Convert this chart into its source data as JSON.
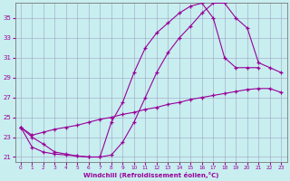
{
  "bg_color": "#c8eef0",
  "line_color": "#990099",
  "grid_color": "#9999bb",
  "xlim": [
    -0.5,
    23.5
  ],
  "ylim": [
    20.5,
    36.5
  ],
  "xticks": [
    0,
    1,
    2,
    3,
    4,
    5,
    6,
    7,
    8,
    9,
    10,
    11,
    12,
    13,
    14,
    15,
    16,
    17,
    18,
    19,
    20,
    21,
    22,
    23
  ],
  "yticks": [
    21,
    23,
    25,
    27,
    29,
    31,
    33,
    35
  ],
  "xlabel": "Windchill (Refroidissement éolien,°C)",
  "line1_x": [
    0,
    1,
    2,
    3,
    4,
    5,
    6,
    7,
    8,
    9,
    10,
    11,
    12,
    13,
    14,
    15,
    16,
    17,
    18,
    19,
    20,
    21
  ],
  "line1_y": [
    24.0,
    23.0,
    22.3,
    21.5,
    21.3,
    21.1,
    21.0,
    21.0,
    24.5,
    26.5,
    29.5,
    32.0,
    33.5,
    34.5,
    35.5,
    36.2,
    36.5,
    35.0,
    31.0,
    30.0,
    30.0,
    30.0
  ],
  "line2_x": [
    0,
    1,
    2,
    3,
    4,
    5,
    6,
    7,
    8,
    9,
    10,
    11,
    12,
    13,
    14,
    15,
    16,
    17,
    18,
    19,
    20,
    21,
    22,
    23
  ],
  "line2_y": [
    24.0,
    23.2,
    23.5,
    23.8,
    24.0,
    24.2,
    24.5,
    24.8,
    25.0,
    25.3,
    25.5,
    25.8,
    26.0,
    26.3,
    26.5,
    26.8,
    27.0,
    27.2,
    27.4,
    27.6,
    27.8,
    27.9,
    27.9,
    27.5
  ],
  "line3_x": [
    0,
    1,
    2,
    3,
    4,
    5,
    6,
    7,
    8,
    9,
    10,
    11,
    12,
    13,
    14,
    15,
    16,
    17,
    18,
    19,
    20,
    21,
    22,
    23
  ],
  "line3_y": [
    24.0,
    22.0,
    21.5,
    21.3,
    21.2,
    21.1,
    21.0,
    21.0,
    21.2,
    22.5,
    24.5,
    27.0,
    29.5,
    31.5,
    33.0,
    34.2,
    35.5,
    36.5,
    36.5,
    35.0,
    34.0,
    30.5,
    30.0,
    29.5
  ]
}
